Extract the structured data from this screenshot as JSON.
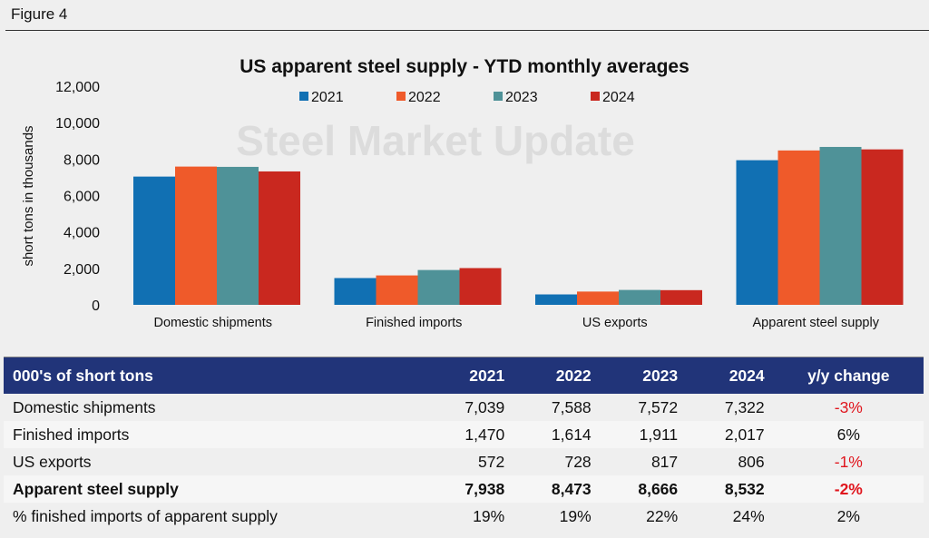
{
  "figure_label": "Figure 4",
  "watermark": "Steel Market Update",
  "chart_data": {
    "type": "bar",
    "title": "US apparent steel supply - YTD monthly averages",
    "ylabel": "short tons in thousands",
    "ylim": [
      0,
      12000
    ],
    "yticks": [
      "0",
      "2,000",
      "4,000",
      "6,000",
      "8,000",
      "10,000",
      "12,000"
    ],
    "categories": [
      "Domestic shipments",
      "Finished imports",
      "US exports",
      "Apparent steel supply"
    ],
    "legend_placement": "top",
    "grid": false,
    "series": [
      {
        "name": "2021",
        "color": "#1170b3",
        "values": [
          7039,
          1470,
          572,
          7938
        ]
      },
      {
        "name": "2022",
        "color": "#ef5a2a",
        "values": [
          7588,
          1614,
          728,
          8473
        ]
      },
      {
        "name": "2023",
        "color": "#4f9298",
        "values": [
          7572,
          1911,
          817,
          8666
        ]
      },
      {
        "name": "2024",
        "color": "#c9281f",
        "values": [
          7322,
          2017,
          806,
          8532
        ]
      }
    ]
  },
  "table": {
    "headers": [
      "000's of short tons",
      "2021",
      "2022",
      "2023",
      "2024",
      "y/y change"
    ],
    "rows": [
      {
        "cells": [
          "Domestic shipments",
          "7,039",
          "7,588",
          "7,572",
          "7,322",
          "-3%"
        ],
        "bold": false,
        "neg": true
      },
      {
        "cells": [
          "Finished imports",
          "1,470",
          "1,614",
          "1,911",
          "2,017",
          "6%"
        ],
        "bold": false,
        "neg": false
      },
      {
        "cells": [
          "US exports",
          "572",
          "728",
          "817",
          "806",
          "-1%"
        ],
        "bold": false,
        "neg": true
      },
      {
        "cells": [
          "Apparent steel supply",
          "7,938",
          "8,473",
          "8,666",
          "8,532",
          "-2%"
        ],
        "bold": true,
        "neg": true
      },
      {
        "cells": [
          "% finished imports of apparent supply",
          "19%",
          "19%",
          "22%",
          "24%",
          "2%"
        ],
        "bold": false,
        "neg": false
      }
    ]
  }
}
